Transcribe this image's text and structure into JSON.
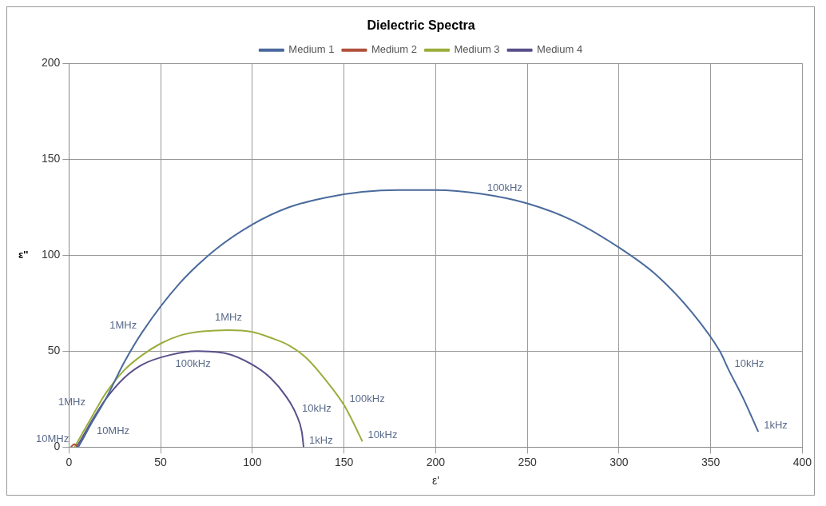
{
  "chart_data": {
    "type": "line",
    "title": "Dielectric Spectra",
    "xlabel": "ε'",
    "ylabel": "ε''",
    "xlim": [
      0,
      400
    ],
    "xticks": [
      0,
      50,
      100,
      150,
      200,
      250,
      300,
      350,
      400
    ],
    "ylim": [
      0,
      200
    ],
    "yticks": [
      0,
      50,
      100,
      150,
      200
    ],
    "grid": true,
    "legend": "top",
    "marker": "none",
    "line_style": "solid",
    "series": [
      {
        "name": "Medium 1",
        "color": "#4a6a9c",
        "x": [
          5,
          8,
          12,
          20,
          30,
          40,
          60,
          80,
          100,
          120,
          140,
          160,
          180,
          200,
          225,
          250,
          275,
          300,
          320,
          340,
          355,
          360,
          368,
          376
        ],
        "values": [
          0,
          5,
          12,
          25,
          44,
          60,
          85,
          103,
          116,
          125,
          130,
          133,
          134,
          134,
          132,
          127,
          118,
          104,
          90,
          70,
          50,
          40,
          25,
          8
        ]
      },
      {
        "name": "Medium 2",
        "color": "#b0503c",
        "x": [
          1,
          2,
          3,
          4,
          5
        ],
        "values": [
          0,
          1,
          1.5,
          1,
          0
        ]
      },
      {
        "name": "Medium 3",
        "color": "#9aad3c",
        "x": [
          3,
          6,
          12,
          20,
          30,
          40,
          50,
          60,
          70,
          87,
          100,
          110,
          120,
          130,
          140,
          150,
          155,
          160
        ],
        "values": [
          0,
          5,
          15,
          28,
          40,
          48,
          54,
          58,
          60,
          61,
          60,
          57,
          53,
          46,
          35,
          22,
          13,
          3
        ]
      },
      {
        "name": "Medium 4",
        "color": "#5a4f8a",
        "x": [
          4,
          6,
          12,
          20,
          30,
          40,
          55,
          70,
          85,
          100,
          110,
          118,
          124,
          127,
          128
        ],
        "values": [
          0,
          3,
          13,
          25,
          36,
          43,
          48,
          50,
          49,
          43,
          36,
          27,
          17,
          8,
          0
        ]
      }
    ],
    "annotations": [
      {
        "text": "1kHz",
        "x": 376,
        "y": 8
      },
      {
        "text": "10kHz",
        "x": 360,
        "y": 40
      },
      {
        "text": "100kHz",
        "x": 225,
        "y": 132
      },
      {
        "text": "1MHz",
        "x": 40,
        "y": 60
      },
      {
        "text": "10MHz",
        "x": 12,
        "y": 12
      },
      {
        "text": "10MHz",
        "x": 3,
        "y": 1
      },
      {
        "text": "10kHz",
        "x": 160,
        "y": 3
      },
      {
        "text": "100kHz",
        "x": 150,
        "y": 22
      },
      {
        "text": "1MHz",
        "x": 87,
        "y": 61
      },
      {
        "text": "1MHz",
        "x": 12,
        "y": 20
      },
      {
        "text": "1kHz",
        "x": 128,
        "y": 0
      },
      {
        "text": "10kHz",
        "x": 124,
        "y": 17
      },
      {
        "text": "100kHz",
        "x": 55,
        "y": 47
      }
    ]
  }
}
